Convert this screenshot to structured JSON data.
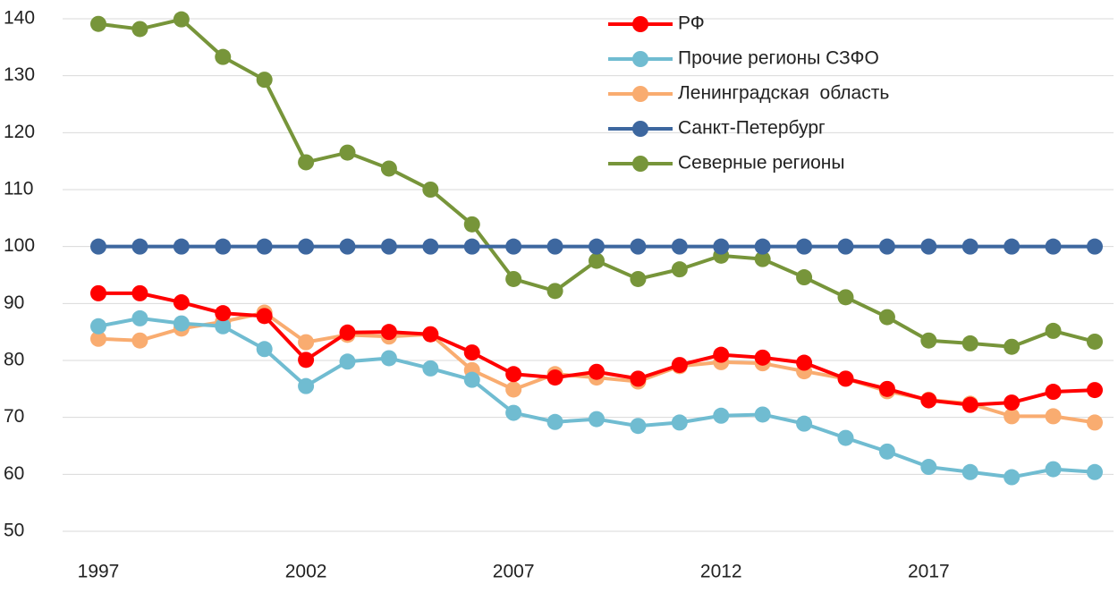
{
  "chart_data": {
    "type": "line",
    "x": [
      1997,
      1998,
      1999,
      2000,
      2001,
      2002,
      2003,
      2004,
      2005,
      2006,
      2007,
      2008,
      2009,
      2010,
      2011,
      2012,
      2013,
      2014,
      2015,
      2016,
      2017,
      2018,
      2019,
      2020,
      2021
    ],
    "xlim": [
      1997,
      2021
    ],
    "xticks": [
      1997,
      2002,
      2007,
      2012,
      2017
    ],
    "ylim": [
      50,
      140
    ],
    "yticks": [
      50,
      60,
      70,
      80,
      90,
      100,
      110,
      120,
      130,
      140
    ],
    "grid": true,
    "legend": "upper right",
    "series": [
      {
        "name": "РФ",
        "color": "#ff0000",
        "values": [
          91.8,
          91.8,
          90.2,
          88.3,
          87.8,
          80.1,
          84.9,
          85.0,
          84.6,
          81.4,
          77.6,
          77.0,
          78.0,
          76.8,
          79.2,
          81.0,
          80.5,
          79.6,
          76.8,
          75.0,
          73.0,
          72.2,
          72.6,
          74.5,
          74.8
        ]
      },
      {
        "name": "Прочие регионы СЗФО",
        "color": "#70bcd1",
        "values": [
          86.0,
          87.4,
          86.5,
          86.0,
          82.0,
          75.5,
          79.8,
          80.4,
          78.6,
          76.6,
          70.8,
          69.2,
          69.7,
          68.5,
          69.1,
          70.3,
          70.5,
          68.9,
          66.4,
          64.0,
          61.3,
          60.4,
          59.5,
          60.9,
          60.4
        ]
      },
      {
        "name": "Ленинградская  область",
        "color": "#f9ac70",
        "values": [
          83.8,
          83.5,
          85.6,
          86.8,
          88.4,
          83.2,
          84.5,
          84.2,
          84.6,
          78.3,
          74.9,
          77.6,
          77.0,
          76.3,
          79.0,
          79.7,
          79.5,
          78.1,
          76.8,
          74.6,
          73.1,
          72.4,
          70.2,
          70.2,
          69.1
        ]
      },
      {
        "name": "Санкт-Петербург",
        "color": "#3d679f",
        "values": [
          100,
          100,
          100,
          100,
          100,
          100,
          100,
          100,
          100,
          100,
          100,
          100,
          100,
          100,
          100,
          100,
          100,
          100,
          100,
          100,
          100,
          100,
          100,
          100,
          100
        ]
      },
      {
        "name": "Северные регионы",
        "color": "#77953a",
        "values": [
          139.1,
          138.2,
          139.9,
          133.3,
          129.3,
          114.8,
          116.5,
          113.7,
          110.0,
          103.9,
          94.3,
          92.2,
          97.5,
          94.3,
          96.0,
          98.4,
          97.8,
          94.6,
          91.1,
          87.6,
          83.5,
          83.0,
          82.4,
          85.2,
          83.3
        ]
      }
    ]
  }
}
